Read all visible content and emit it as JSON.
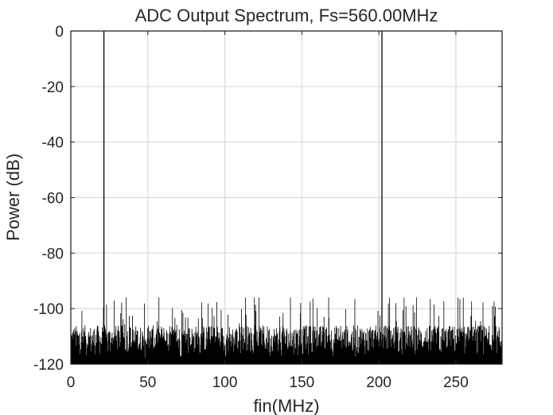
{
  "chart_data": {
    "type": "line",
    "title": "ADC Output Spectrum, Fs=560.00MHz",
    "xlabel": "fin(MHz)",
    "ylabel": "Power (dB)",
    "xlim": [
      0,
      280
    ],
    "ylim": [
      -120,
      0
    ],
    "xticks": [
      0,
      50,
      100,
      150,
      200,
      250
    ],
    "yticks": [
      0,
      -20,
      -40,
      -60,
      -80,
      -100,
      -120
    ],
    "grid": true,
    "series": [
      {
        "color": "#000000",
        "peaks": [
          {
            "x": 21.5,
            "y": 0
          },
          {
            "x": 202,
            "y": 0
          }
        ],
        "noise_floor": {
          "typical_db": -112,
          "max_db": -96,
          "min_db": -120
        }
      }
    ]
  }
}
